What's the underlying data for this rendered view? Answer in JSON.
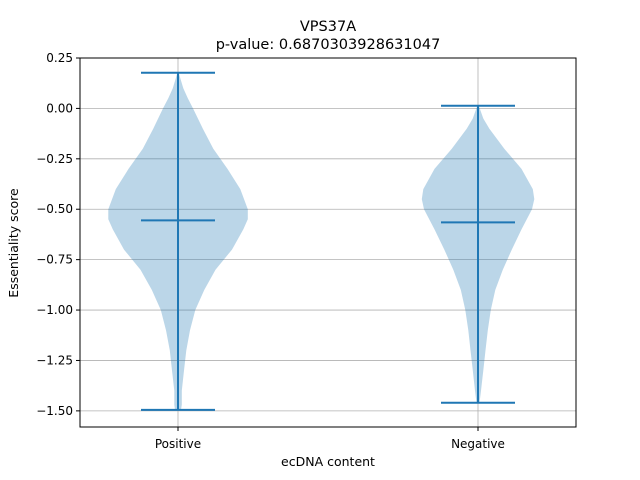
{
  "chart_data": {
    "type": "violin",
    "title": "VPS37A",
    "subtitle": "p-value: 0.6870303928631047",
    "xlabel": "ecDNA content",
    "ylabel": "Essentiality score",
    "ylim": [
      -1.58,
      0.25
    ],
    "yticks": [
      0.25,
      0.0,
      -0.25,
      -0.5,
      -0.75,
      -1.0,
      -1.25,
      -1.5
    ],
    "ytick_labels": [
      "0.25",
      "0.00",
      "−0.25",
      "−0.50",
      "−0.75",
      "−1.00",
      "−1.25",
      "−1.50"
    ],
    "grid": true,
    "categories": [
      "Positive",
      "Negative"
    ],
    "violins": [
      {
        "category": "Positive",
        "max": 0.177,
        "median": -0.555,
        "min": -1.495,
        "profile": [
          [
            0.177,
            0.01
          ],
          [
            0.15,
            0.03
          ],
          [
            0.1,
            0.07
          ],
          [
            0.05,
            0.13
          ],
          [
            0.0,
            0.2
          ],
          [
            -0.1,
            0.33
          ],
          [
            -0.2,
            0.47
          ],
          [
            -0.3,
            0.66
          ],
          [
            -0.4,
            0.83
          ],
          [
            -0.5,
            0.93
          ],
          [
            -0.55,
            0.93
          ],
          [
            -0.6,
            0.87
          ],
          [
            -0.7,
            0.72
          ],
          [
            -0.8,
            0.5
          ],
          [
            -0.9,
            0.35
          ],
          [
            -1.0,
            0.23
          ],
          [
            -1.1,
            0.16
          ],
          [
            -1.2,
            0.11
          ],
          [
            -1.3,
            0.08
          ],
          [
            -1.4,
            0.05
          ],
          [
            -1.47,
            0.05
          ],
          [
            -1.495,
            0.04
          ]
        ]
      },
      {
        "category": "Negative",
        "max": 0.013,
        "median": -0.565,
        "min": -1.46,
        "profile": [
          [
            0.013,
            0.01
          ],
          [
            -0.05,
            0.07
          ],
          [
            -0.1,
            0.15
          ],
          [
            -0.2,
            0.35
          ],
          [
            -0.3,
            0.58
          ],
          [
            -0.4,
            0.73
          ],
          [
            -0.45,
            0.75
          ],
          [
            -0.5,
            0.72
          ],
          [
            -0.6,
            0.58
          ],
          [
            -0.7,
            0.45
          ],
          [
            -0.8,
            0.33
          ],
          [
            -0.9,
            0.23
          ],
          [
            -1.0,
            0.17
          ],
          [
            -1.1,
            0.13
          ],
          [
            -1.2,
            0.1
          ],
          [
            -1.3,
            0.07
          ],
          [
            -1.4,
            0.04
          ],
          [
            -1.46,
            0.02
          ]
        ]
      }
    ],
    "colors": {
      "fill": "#1f77b4",
      "line": "#1f77b4",
      "grid": "#b0b0b0"
    }
  }
}
